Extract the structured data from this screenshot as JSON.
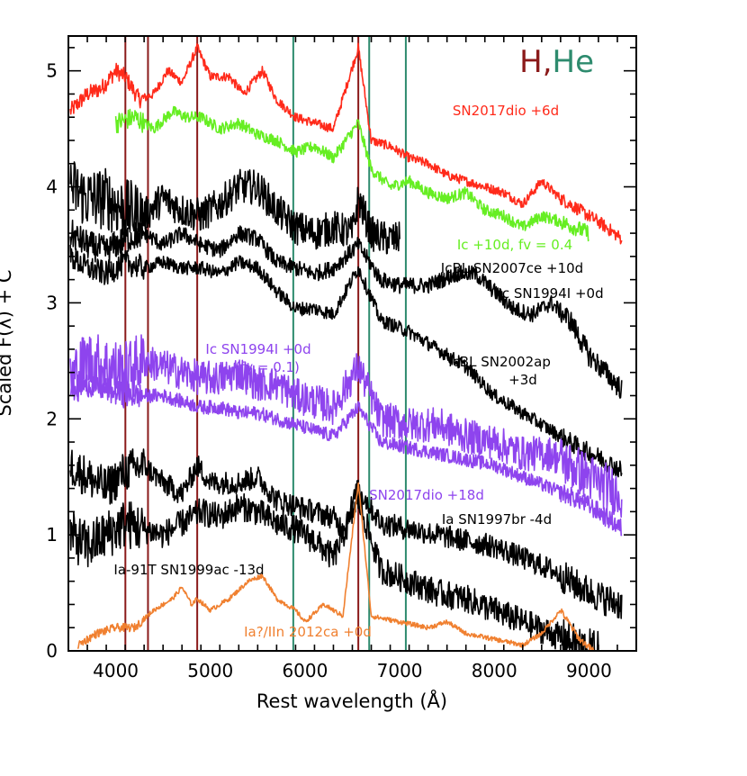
{
  "chart_data": {
    "type": "line",
    "title": "",
    "xlabel": "Rest wavelength (Å)",
    "ylabel": "Scaled F(λ) + C",
    "xlim": [
      3500,
      9500
    ],
    "ylim": [
      0,
      5.3
    ],
    "xticks": [
      4000,
      5000,
      6000,
      7000,
      8000,
      9000
    ],
    "yticks": [
      0,
      1,
      2,
      3,
      4,
      5
    ],
    "legend": {
      "h": "H",
      "sep": ",",
      "he": "He"
    },
    "reference_lines": {
      "H": {
        "color": "#8b1a1a",
        "x": [
          4102,
          4341,
          4861,
          6563
        ]
      },
      "He": {
        "color": "#2e8b6e",
        "x": [
          5876,
          6678,
          7065
        ]
      }
    },
    "series": [
      {
        "name": "SN2017dio +6d",
        "color": "#ff2a1a",
        "label": "SN2017dio +6d",
        "noise": 0.04,
        "points": [
          [
            3520,
            4.65
          ],
          [
            3700,
            4.8
          ],
          [
            3850,
            4.85
          ],
          [
            4000,
            5.0
          ],
          [
            4100,
            4.95
          ],
          [
            4250,
            4.75
          ],
          [
            4400,
            4.8
          ],
          [
            4550,
            5.0
          ],
          [
            4700,
            4.9
          ],
          [
            4861,
            5.2
          ],
          [
            5000,
            4.95
          ],
          [
            5200,
            4.95
          ],
          [
            5350,
            4.8
          ],
          [
            5550,
            5.0
          ],
          [
            5700,
            4.75
          ],
          [
            5900,
            4.6
          ],
          [
            6100,
            4.55
          ],
          [
            6300,
            4.5
          ],
          [
            6563,
            5.2
          ],
          [
            6700,
            4.4
          ],
          [
            6900,
            4.35
          ],
          [
            7100,
            4.25
          ],
          [
            7300,
            4.2
          ],
          [
            7500,
            4.1
          ],
          [
            7700,
            4.05
          ],
          [
            7900,
            4.0
          ],
          [
            8100,
            3.95
          ],
          [
            8300,
            3.85
          ],
          [
            8500,
            4.05
          ],
          [
            8700,
            3.9
          ],
          [
            8900,
            3.8
          ],
          [
            9100,
            3.7
          ],
          [
            9350,
            3.55
          ]
        ]
      },
      {
        "name": "Ic +10d, fv = 0.4",
        "color": "#66ee22",
        "label": "Ic +10d, fv = 0.4",
        "noise": 0.05,
        "points": [
          [
            4000,
            4.55
          ],
          [
            4200,
            4.6
          ],
          [
            4400,
            4.5
          ],
          [
            4600,
            4.65
          ],
          [
            4750,
            4.6
          ],
          [
            4900,
            4.6
          ],
          [
            5100,
            4.5
          ],
          [
            5300,
            4.55
          ],
          [
            5500,
            4.45
          ],
          [
            5700,
            4.4
          ],
          [
            5900,
            4.3
          ],
          [
            6100,
            4.35
          ],
          [
            6300,
            4.25
          ],
          [
            6563,
            4.55
          ],
          [
            6700,
            4.15
          ],
          [
            6900,
            4.0
          ],
          [
            7100,
            4.05
          ],
          [
            7300,
            3.95
          ],
          [
            7500,
            3.9
          ],
          [
            7700,
            3.95
          ],
          [
            7900,
            3.8
          ],
          [
            8100,
            3.75
          ],
          [
            8300,
            3.65
          ],
          [
            8500,
            3.75
          ],
          [
            8700,
            3.7
          ],
          [
            9000,
            3.6
          ]
        ]
      },
      {
        "name": "IcBL SN2007ce +10d",
        "color": "#000000",
        "label": "IcBL SN2007ce +10d",
        "noise": 0.15,
        "points": [
          [
            3520,
            4.0
          ],
          [
            3700,
            3.9
          ],
          [
            3900,
            3.9
          ],
          [
            4100,
            3.8
          ],
          [
            4300,
            3.75
          ],
          [
            4500,
            3.9
          ],
          [
            4700,
            3.8
          ],
          [
            4900,
            3.75
          ],
          [
            5100,
            3.85
          ],
          [
            5300,
            4.0
          ],
          [
            5500,
            4.0
          ],
          [
            5700,
            3.8
          ],
          [
            5900,
            3.65
          ],
          [
            6100,
            3.6
          ],
          [
            6300,
            3.65
          ],
          [
            6500,
            3.6
          ],
          [
            6563,
            3.9
          ],
          [
            6700,
            3.6
          ],
          [
            6850,
            3.55
          ],
          [
            7000,
            3.55
          ]
        ]
      },
      {
        "name": "Ic SN1994I +0d",
        "color": "#000000",
        "label": "Ic SN1994I +0d",
        "noise": 0.07,
        "points": [
          [
            3520,
            3.6
          ],
          [
            3700,
            3.5
          ],
          [
            3900,
            3.45
          ],
          [
            4100,
            3.55
          ],
          [
            4300,
            3.6
          ],
          [
            4500,
            3.5
          ],
          [
            4700,
            3.6
          ],
          [
            4900,
            3.5
          ],
          [
            5100,
            3.45
          ],
          [
            5300,
            3.6
          ],
          [
            5500,
            3.55
          ],
          [
            5700,
            3.35
          ],
          [
            5900,
            3.3
          ],
          [
            6100,
            3.25
          ],
          [
            6300,
            3.3
          ],
          [
            6563,
            3.5
          ],
          [
            6800,
            3.2
          ],
          [
            7000,
            3.15
          ],
          [
            7300,
            3.15
          ],
          [
            7600,
            3.25
          ],
          [
            7800,
            3.25
          ],
          [
            8000,
            3.1
          ],
          [
            8200,
            2.95
          ],
          [
            8400,
            2.9
          ],
          [
            8600,
            3.0
          ],
          [
            8800,
            2.85
          ],
          [
            9000,
            2.55
          ],
          [
            9350,
            2.25
          ]
        ]
      },
      {
        "name": "IcBL SN2002ap +3d",
        "color": "#000000",
        "label": "IcBL SN2002ap +3d",
        "noise": 0.06,
        "points": [
          [
            3520,
            3.4
          ],
          [
            3700,
            3.3
          ],
          [
            3900,
            3.25
          ],
          [
            4100,
            3.35
          ],
          [
            4300,
            3.3
          ],
          [
            4500,
            3.35
          ],
          [
            4700,
            3.3
          ],
          [
            4900,
            3.3
          ],
          [
            5100,
            3.25
          ],
          [
            5300,
            3.35
          ],
          [
            5500,
            3.3
          ],
          [
            5700,
            3.1
          ],
          [
            5900,
            2.95
          ],
          [
            6100,
            2.95
          ],
          [
            6300,
            2.9
          ],
          [
            6563,
            3.3
          ],
          [
            6800,
            2.85
          ],
          [
            7100,
            2.75
          ],
          [
            7400,
            2.6
          ],
          [
            7700,
            2.45
          ],
          [
            8000,
            2.2
          ],
          [
            8300,
            2.05
          ],
          [
            8600,
            1.9
          ],
          [
            8900,
            1.75
          ],
          [
            9150,
            1.65
          ],
          [
            9350,
            1.55
          ]
        ]
      },
      {
        "name": "Ic SN1994I +0d (fv = 0.1)",
        "color": "#8e44ee",
        "label": "Ic SN1994I +0d",
        "label2": "(fv = 0.1)",
        "noise": 0.15,
        "points": [
          [
            3520,
            2.35
          ],
          [
            3700,
            2.5
          ],
          [
            3900,
            2.45
          ],
          [
            4100,
            2.4
          ],
          [
            4300,
            2.5
          ],
          [
            4500,
            2.45
          ],
          [
            4700,
            2.4
          ],
          [
            4900,
            2.35
          ],
          [
            5100,
            2.35
          ],
          [
            5300,
            2.4
          ],
          [
            5500,
            2.3
          ],
          [
            5700,
            2.3
          ],
          [
            5900,
            2.2
          ],
          [
            6100,
            2.15
          ],
          [
            6300,
            2.1
          ],
          [
            6563,
            2.45
          ],
          [
            6800,
            2.0
          ],
          [
            7100,
            1.95
          ],
          [
            7400,
            1.95
          ],
          [
            7700,
            1.85
          ],
          [
            8000,
            1.8
          ],
          [
            8300,
            1.7
          ],
          [
            8600,
            1.7
          ],
          [
            8900,
            1.55
          ],
          [
            9100,
            1.45
          ],
          [
            9350,
            1.35
          ]
        ]
      },
      {
        "name": "SN2017dio +18d",
        "color": "#8e44ee",
        "label": "SN2017dio +18d",
        "noise": 0.06,
        "points": [
          [
            3520,
            2.25
          ],
          [
            3700,
            2.3
          ],
          [
            3900,
            2.25
          ],
          [
            4100,
            2.2
          ],
          [
            4300,
            2.2
          ],
          [
            4500,
            2.2
          ],
          [
            4700,
            2.15
          ],
          [
            4900,
            2.1
          ],
          [
            5100,
            2.1
          ],
          [
            5300,
            2.05
          ],
          [
            5500,
            2.05
          ],
          [
            5700,
            2.0
          ],
          [
            5900,
            1.95
          ],
          [
            6100,
            1.9
          ],
          [
            6300,
            1.85
          ],
          [
            6563,
            2.1
          ],
          [
            6800,
            1.8
          ],
          [
            7100,
            1.75
          ],
          [
            7400,
            1.7
          ],
          [
            7700,
            1.65
          ],
          [
            8000,
            1.6
          ],
          [
            8300,
            1.5
          ],
          [
            8600,
            1.4
          ],
          [
            8900,
            1.3
          ],
          [
            9100,
            1.2
          ],
          [
            9350,
            1.05
          ]
        ]
      },
      {
        "name": "Ia SN1997br -4d",
        "color": "#000000",
        "label": "Ia SN1997br -4d",
        "noise": 0.1,
        "points": [
          [
            3520,
            1.6
          ],
          [
            3700,
            1.5
          ],
          [
            3900,
            1.4
          ],
          [
            4100,
            1.55
          ],
          [
            4300,
            1.6
          ],
          [
            4500,
            1.45
          ],
          [
            4700,
            1.35
          ],
          [
            4861,
            1.6
          ],
          [
            5000,
            1.45
          ],
          [
            5300,
            1.45
          ],
          [
            5500,
            1.5
          ],
          [
            5700,
            1.3
          ],
          [
            5900,
            1.25
          ],
          [
            6100,
            1.2
          ],
          [
            6300,
            1.15
          ],
          [
            6400,
            1.05
          ],
          [
            6563,
            1.4
          ],
          [
            6800,
            1.1
          ],
          [
            7100,
            1.05
          ],
          [
            7400,
            1.0
          ],
          [
            7700,
            0.95
          ],
          [
            8000,
            0.9
          ],
          [
            8300,
            0.8
          ],
          [
            8600,
            0.7
          ],
          [
            8900,
            0.55
          ],
          [
            9150,
            0.45
          ],
          [
            9350,
            0.4
          ]
        ]
      },
      {
        "name": "Ia-91T SN1999ac -13d",
        "color": "#000000",
        "label": "Ia-91T SN1999ac -13d",
        "noise": 0.12,
        "points": [
          [
            3520,
            1.0
          ],
          [
            3700,
            0.9
          ],
          [
            3900,
            1.0
          ],
          [
            4100,
            1.1
          ],
          [
            4300,
            1.05
          ],
          [
            4500,
            1.0
          ],
          [
            4700,
            1.1
          ],
          [
            4900,
            1.2
          ],
          [
            5100,
            1.15
          ],
          [
            5300,
            1.25
          ],
          [
            5500,
            1.2
          ],
          [
            5700,
            1.1
          ],
          [
            5900,
            1.05
          ],
          [
            6100,
            0.95
          ],
          [
            6300,
            0.8
          ],
          [
            6563,
            1.3
          ],
          [
            6800,
            0.7
          ],
          [
            7100,
            0.6
          ],
          [
            7400,
            0.5
          ],
          [
            7700,
            0.45
          ],
          [
            8000,
            0.35
          ],
          [
            8300,
            0.25
          ],
          [
            8600,
            0.15
          ],
          [
            8900,
            0.05
          ],
          [
            9100,
            0.0
          ]
        ]
      },
      {
        "name": "Ia?/IIn 2012ca +0d",
        "color": "#f08030",
        "label": "Ia?/IIn 2012ca +0d",
        "noise": 0.02,
        "points": [
          [
            3600,
            0.05
          ],
          [
            3800,
            0.15
          ],
          [
            4000,
            0.2
          ],
          [
            4200,
            0.2
          ],
          [
            4400,
            0.35
          ],
          [
            4600,
            0.45
          ],
          [
            4700,
            0.55
          ],
          [
            4800,
            0.4
          ],
          [
            4861,
            0.45
          ],
          [
            5000,
            0.35
          ],
          [
            5200,
            0.45
          ],
          [
            5400,
            0.6
          ],
          [
            5550,
            0.65
          ],
          [
            5700,
            0.45
          ],
          [
            5900,
            0.35
          ],
          [
            6000,
            0.25
          ],
          [
            6200,
            0.4
          ],
          [
            6400,
            0.3
          ],
          [
            6563,
            1.45
          ],
          [
            6700,
            0.3
          ],
          [
            7000,
            0.25
          ],
          [
            7300,
            0.2
          ],
          [
            7500,
            0.25
          ],
          [
            7700,
            0.15
          ],
          [
            8000,
            0.1
          ],
          [
            8300,
            0.05
          ],
          [
            8500,
            0.15
          ],
          [
            8700,
            0.35
          ],
          [
            8900,
            0.1
          ],
          [
            9050,
            0.0
          ]
        ]
      }
    ]
  }
}
